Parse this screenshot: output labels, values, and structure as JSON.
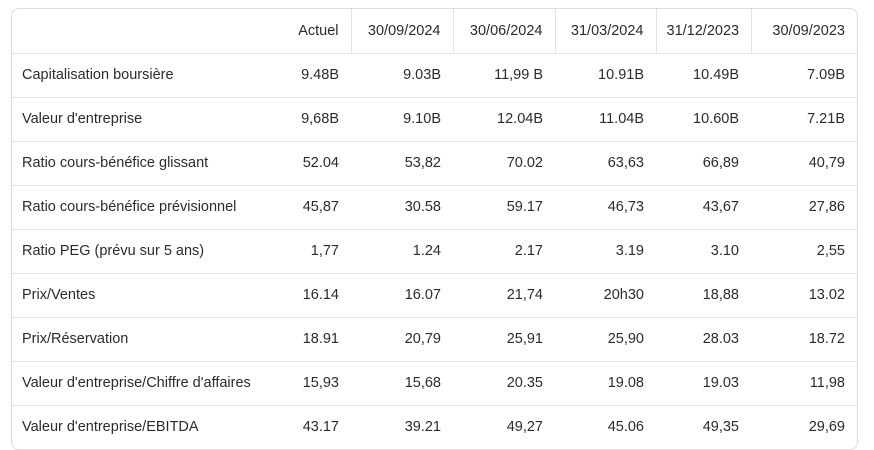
{
  "table": {
    "header": [
      "Actuel",
      "30/09/2024",
      "30/06/2024",
      "31/03/2024",
      "31/12/2023",
      "30/09/2023"
    ],
    "rows": [
      [
        "Capitalisation boursière",
        "9.48B",
        "9.03B",
        "11,99 B",
        "10.91B",
        "10.49B",
        "7.09B"
      ],
      [
        "Valeur d'entreprise",
        "9,68B",
        "9.10B",
        "12.04B",
        "11.04B",
        "10.60B",
        "7.21B"
      ],
      [
        "Ratio cours-bénéfice glissant",
        "52.04",
        "53,82",
        "70.02",
        "63,63",
        "66,89",
        "40,79"
      ],
      [
        "Ratio cours-bénéfice prévisionnel",
        "45,87",
        "30.58",
        "59.17",
        "46,73",
        "43,67",
        "27,86"
      ],
      [
        "Ratio PEG (prévu sur 5 ans)",
        "1,77",
        "1.24",
        "2.17",
        "3.19",
        "3.10",
        "2,55"
      ],
      [
        "Prix/Ventes",
        "16.14",
        "16.07",
        "21,74",
        "20h30",
        "18,88",
        "13.02"
      ],
      [
        "Prix/Réservation",
        "18.91",
        "20,79",
        "25,91",
        "25,90",
        "28.03",
        "18.72"
      ],
      [
        "Valeur d'entreprise/Chiffre d'affaires",
        "15,93",
        "15,68",
        "20.35",
        "19.08",
        "19.03",
        "11,98"
      ],
      [
        "Valeur d'entreprise/EBITDA",
        "43.17",
        "39.21",
        "49,27",
        "45.06",
        "49,35",
        "29,69"
      ]
    ]
  }
}
